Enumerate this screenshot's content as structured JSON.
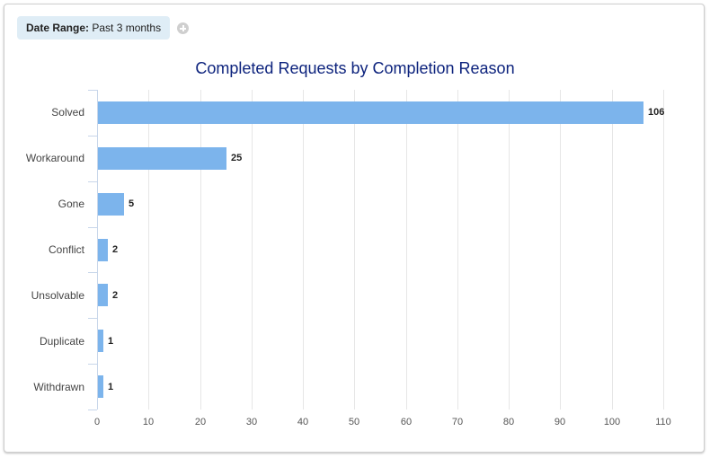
{
  "filter": {
    "label": "Date Range:",
    "value": "Past 3 months",
    "add_icon": "plus-circle-icon"
  },
  "colors": {
    "bar": "#7cb4ec",
    "title": "#0d237d",
    "filter_bg": "#dfedf6"
  },
  "chart_data": {
    "type": "bar",
    "orientation": "horizontal",
    "title": "Completed Requests by Completion Reason",
    "categories": [
      "Solved",
      "Workaround",
      "Gone",
      "Conflict",
      "Unsolvable",
      "Duplicate",
      "Withdrawn"
    ],
    "values": [
      106,
      25,
      5,
      2,
      2,
      1,
      1
    ],
    "xlabel": "",
    "ylabel": "",
    "xlim": [
      0,
      110
    ],
    "x_ticks": [
      "0",
      "10",
      "20",
      "30",
      "40",
      "50",
      "60",
      "70",
      "80",
      "90",
      "100",
      "110"
    ],
    "grid": true,
    "data_labels": true,
    "legend": null
  }
}
